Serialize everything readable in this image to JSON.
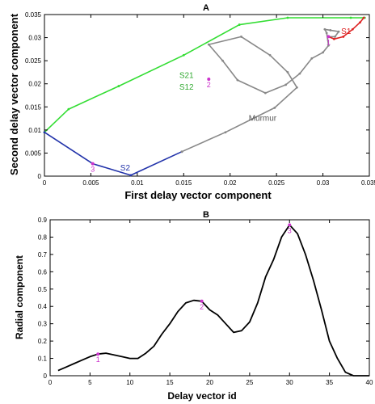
{
  "chart_data": [
    {
      "panel": "A",
      "type": "line",
      "title": "A",
      "xlabel": "First delay vector component",
      "ylabel": "Second delay vector component",
      "xlim": [
        0,
        0.035
      ],
      "ylim": [
        0,
        0.035
      ],
      "xticks": [
        "0",
        "0.005",
        "0.01",
        "0.015",
        "0.02",
        "0.025",
        "0.03",
        "0.035"
      ],
      "yticks": [
        "0",
        "0.005",
        "0.01",
        "0.015",
        "0.02",
        "0.025",
        "0.03",
        "0.035"
      ],
      "series": [
        {
          "name": "S21 S12",
          "color": "#33dd33",
          "x": [
            0.0,
            0.0026,
            0.008,
            0.015,
            0.021,
            0.0262,
            0.033,
            0.0345
          ],
          "y": [
            0.0095,
            0.0145,
            0.0195,
            0.0262,
            0.0328,
            0.0343,
            0.0343,
            0.0343
          ]
        },
        {
          "name": "S2",
          "color": "#2233aa",
          "x": [
            0.0,
            0.0052,
            0.0093,
            0.0148
          ],
          "y": [
            0.0095,
            0.0027,
            0.0002,
            0.0053
          ]
        },
        {
          "name": "Murmur",
          "color": "#888888",
          "x": [
            0.0148,
            0.0195,
            0.0248,
            0.0272,
            0.0262,
            0.0243,
            0.0212,
            0.0177,
            0.0192,
            0.0208,
            0.0238,
            0.026,
            0.0275,
            0.0288,
            0.03,
            0.0306,
            0.0304,
            0.0302,
            0.0308,
            0.0317,
            0.0313,
            0.0306
          ],
          "y": [
            0.0053,
            0.0095,
            0.0148,
            0.0192,
            0.0225,
            0.0262,
            0.0302,
            0.0285,
            0.025,
            0.0208,
            0.018,
            0.0198,
            0.0222,
            0.0255,
            0.0268,
            0.0283,
            0.031,
            0.0318,
            0.0316,
            0.0313,
            0.0302,
            0.0302
          ]
        },
        {
          "name": "S1",
          "color": "#dd2222",
          "x": [
            0.0306,
            0.0312,
            0.0322,
            0.0332,
            0.034,
            0.0344
          ],
          "y": [
            0.0302,
            0.0297,
            0.0302,
            0.0318,
            0.0333,
            0.0343
          ]
        }
      ],
      "annotations": [
        {
          "text": "S21",
          "x": 0.0153,
          "y": 0.0213,
          "color": "#33aa33"
        },
        {
          "text": "S12",
          "x": 0.0153,
          "y": 0.0187,
          "color": "#33aa33"
        },
        {
          "text": "S2",
          "x": 0.0087,
          "y": 0.0012,
          "color": "#2233aa"
        },
        {
          "text": "Murmur",
          "x": 0.0235,
          "y": 0.012,
          "color": "#555555"
        },
        {
          "text": "S1",
          "x": 0.0325,
          "y": 0.0308,
          "color": "#dd2222"
        }
      ],
      "markers": [
        {
          "label": "1",
          "x": 0.0306,
          "y": 0.0302
        },
        {
          "label": "2",
          "x": 0.0177,
          "y": 0.021
        },
        {
          "label": "3",
          "x": 0.0052,
          "y": 0.0027
        }
      ]
    },
    {
      "panel": "B",
      "type": "line",
      "title": "B",
      "xlabel": "Delay vector id",
      "ylabel": "Radial  component",
      "xlim": [
        0,
        40
      ],
      "ylim": [
        0,
        0.9
      ],
      "xticks": [
        "0",
        "5",
        "10",
        "15",
        "20",
        "25",
        "30",
        "35",
        "40"
      ],
      "yticks": [
        "0",
        "0.1",
        "0.2",
        "0.3",
        "0.4",
        "0.5",
        "0.6",
        "0.7",
        "0.8",
        "0.9"
      ],
      "series": [
        {
          "color": "#000000",
          "x": [
            1,
            2,
            3,
            4,
            5,
            6,
            7,
            8,
            9,
            10,
            11,
            12,
            13,
            14,
            15,
            16,
            17,
            18,
            19,
            20,
            21,
            22,
            23,
            24,
            25,
            26,
            27,
            28,
            29,
            30,
            31,
            32,
            33,
            34,
            35,
            36,
            37,
            38,
            39,
            40
          ],
          "y": [
            0.03,
            0.05,
            0.07,
            0.09,
            0.11,
            0.125,
            0.13,
            0.12,
            0.11,
            0.1,
            0.1,
            0.13,
            0.17,
            0.24,
            0.3,
            0.37,
            0.42,
            0.435,
            0.43,
            0.38,
            0.35,
            0.3,
            0.25,
            0.26,
            0.31,
            0.42,
            0.57,
            0.67,
            0.8,
            0.87,
            0.82,
            0.7,
            0.55,
            0.38,
            0.2,
            0.1,
            0.02,
            0.0,
            0.0,
            0.0
          ]
        }
      ],
      "markers": [
        {
          "label": "1",
          "x": 6,
          "y": 0.125
        },
        {
          "label": "2",
          "x": 19,
          "y": 0.43
        },
        {
          "label": "3",
          "x": 30,
          "y": 0.87
        }
      ]
    }
  ]
}
